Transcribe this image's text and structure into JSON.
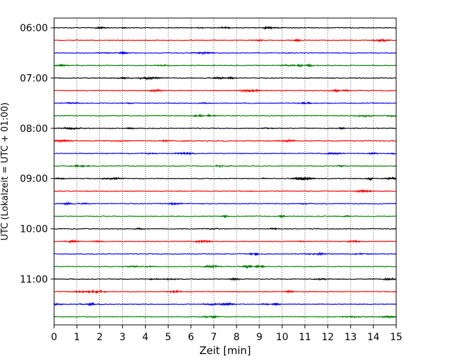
{
  "chart_data": {
    "type": "line",
    "title": "",
    "xlabel": "Zeit  [min]",
    "ylabel": "UTC (Lokalzeit = UTC + 01:00)",
    "xlim": [
      0,
      15
    ],
    "x_ticks": [
      "0",
      "1",
      "2",
      "3",
      "4",
      "5",
      "6",
      "7",
      "8",
      "9",
      "10",
      "11",
      "12",
      "13",
      "14",
      "15"
    ],
    "y_tick_labels": [
      "06:00",
      "07:00",
      "08:00",
      "09:00",
      "10:00",
      "11:00"
    ],
    "grid": "vertical dotted",
    "trace_minutes": 15,
    "trace_colors": [
      "#000000",
      "#ff0000",
      "#0000ff",
      "#008000"
    ],
    "traces": [
      {
        "start": "06:00",
        "color": "#000000"
      },
      {
        "start": "06:15",
        "color": "#ff0000"
      },
      {
        "start": "06:30",
        "color": "#0000ff"
      },
      {
        "start": "06:45",
        "color": "#008000"
      },
      {
        "start": "07:00",
        "color": "#000000"
      },
      {
        "start": "07:15",
        "color": "#ff0000"
      },
      {
        "start": "07:30",
        "color": "#0000ff"
      },
      {
        "start": "07:45",
        "color": "#008000"
      },
      {
        "start": "08:00",
        "color": "#000000"
      },
      {
        "start": "08:15",
        "color": "#ff0000"
      },
      {
        "start": "08:30",
        "color": "#0000ff"
      },
      {
        "start": "08:45",
        "color": "#008000"
      },
      {
        "start": "09:00",
        "color": "#000000"
      },
      {
        "start": "09:15",
        "color": "#ff0000"
      },
      {
        "start": "09:30",
        "color": "#0000ff"
      },
      {
        "start": "09:45",
        "color": "#008000"
      },
      {
        "start": "10:00",
        "color": "#000000"
      },
      {
        "start": "10:15",
        "color": "#ff0000"
      },
      {
        "start": "10:30",
        "color": "#0000ff"
      },
      {
        "start": "10:45",
        "color": "#008000"
      },
      {
        "start": "11:00",
        "color": "#000000"
      },
      {
        "start": "11:15",
        "color": "#ff0000"
      },
      {
        "start": "11:30",
        "color": "#0000ff"
      },
      {
        "start": "11:45",
        "color": "#008000"
      }
    ]
  }
}
